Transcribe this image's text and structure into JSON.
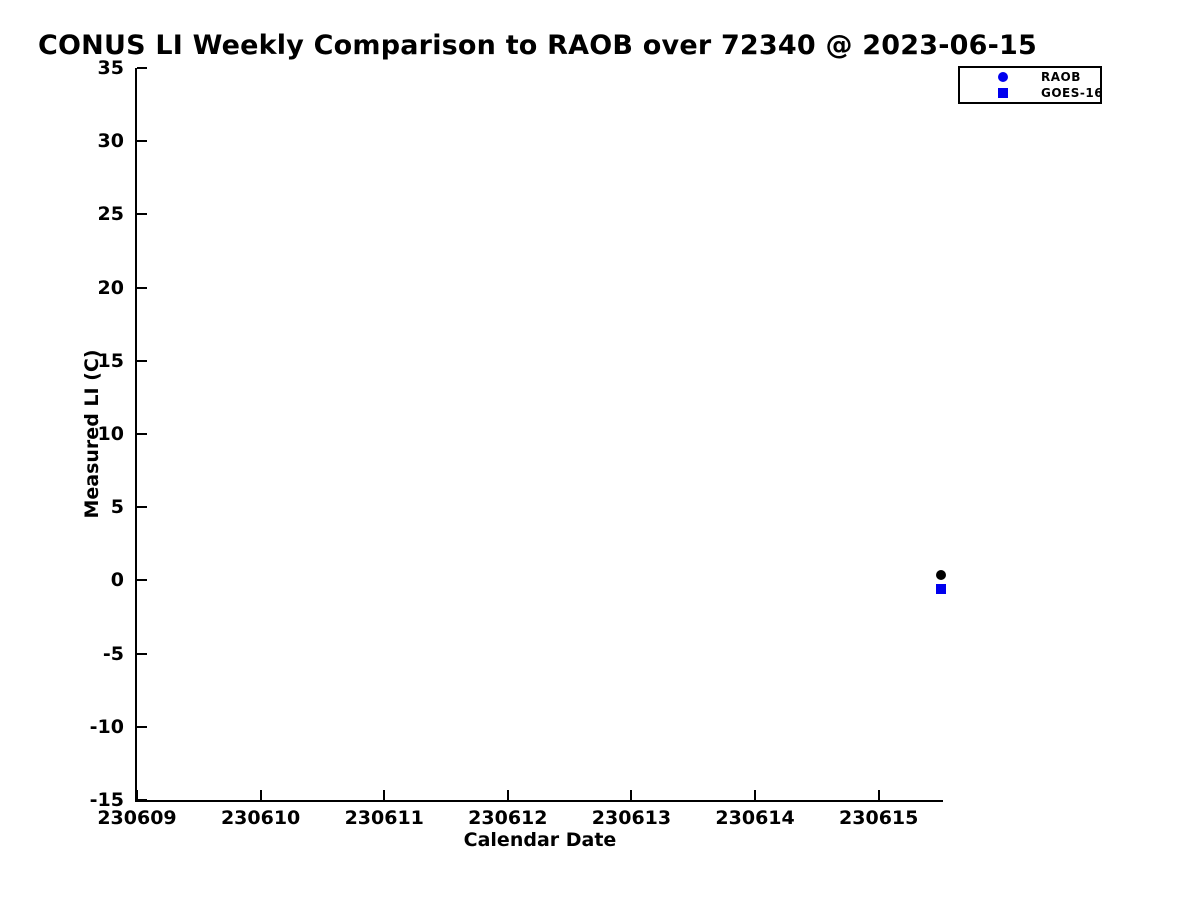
{
  "chart_data": {
    "type": "scatter",
    "title": "CONUS LI Weekly Comparison to RAOB over 72340 @ 2023-06-15",
    "xlabel": "Calendar Date",
    "ylabel": "Measured LI (C)",
    "x_range": [
      230609,
      230615.52
    ],
    "y_range": [
      -15,
      35
    ],
    "x_ticks": [
      "230609",
      "230610",
      "230611",
      "230612",
      "230613",
      "230614",
      "230615"
    ],
    "y_ticks": [
      35,
      30,
      25,
      20,
      15,
      10,
      5,
      0,
      -5,
      -10,
      -15
    ],
    "grid": false,
    "legend": {
      "position": "top-right-outside",
      "entries": [
        {
          "label": "RAOB",
          "marker": "circle",
          "color": "#0000ee"
        },
        {
          "label": "GOES-16",
          "marker": "square",
          "color": "#0000ee"
        }
      ]
    },
    "series": [
      {
        "name": "RAOB",
        "marker": "circle",
        "color": "#000000",
        "marker_size": 10,
        "points": [
          {
            "x": 230615.5,
            "y": 0.4
          }
        ]
      },
      {
        "name": "GOES-16",
        "marker": "square",
        "color": "#0000ee",
        "marker_size": 10,
        "points": [
          {
            "x": 230615.5,
            "y": -0.6
          }
        ]
      }
    ]
  }
}
